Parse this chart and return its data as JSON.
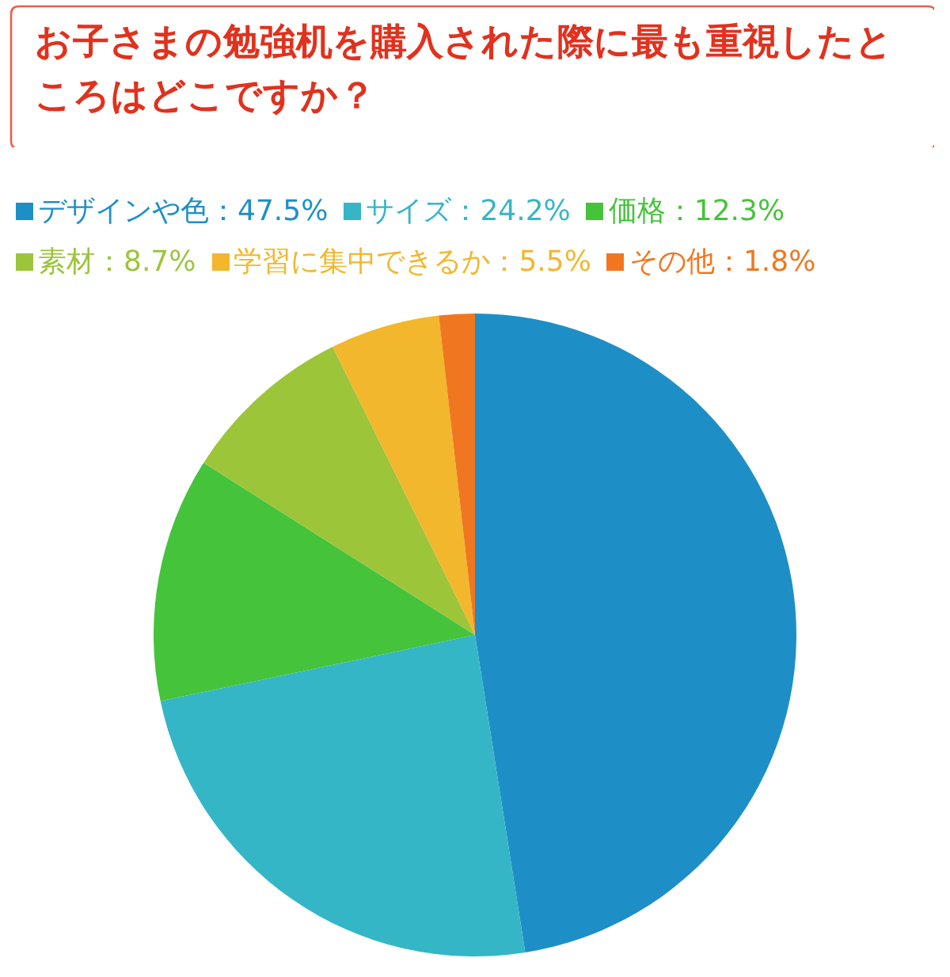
{
  "chart_data": {
    "type": "pie",
    "title": "お子さまの勉強机を購入された際に最も重視したところはどこですか？",
    "categories": [
      "デザインや色",
      "サイズ",
      "価格",
      "素材",
      "学習に集中できるか",
      "その他"
    ],
    "values": [
      47.5,
      24.2,
      12.3,
      8.7,
      5.5,
      1.8
    ],
    "value_labels": [
      "47.5%",
      "24.2%",
      "12.3%",
      "8.7%",
      "5.5%",
      "1.8%"
    ],
    "colors": [
      "#1e8fc6",
      "#35b6c6",
      "#45c33b",
      "#9cc53a",
      "#f2b72c",
      "#f0771f"
    ],
    "legend": "top"
  }
}
